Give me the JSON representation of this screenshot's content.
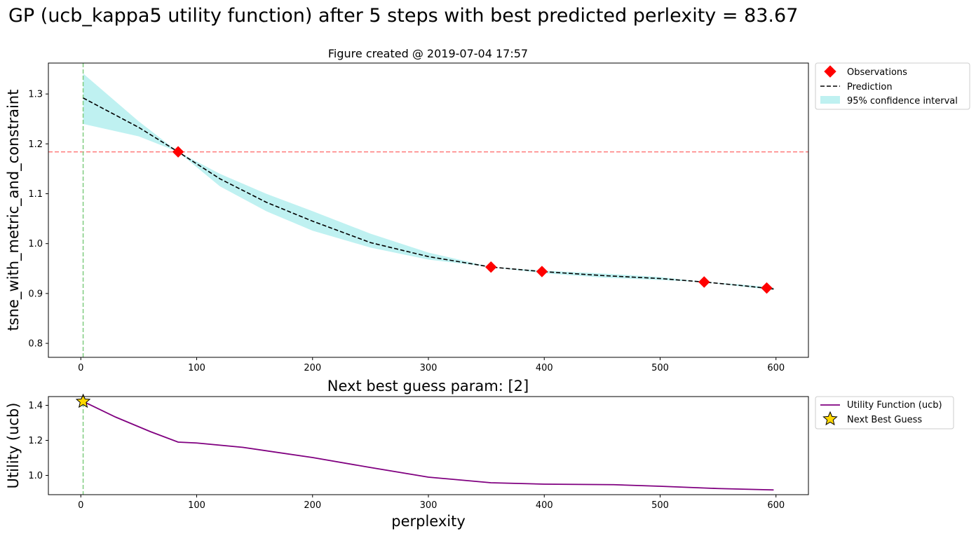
{
  "figure": {
    "suptitle": "GP (ucb_kappa5 utility function) after 5 steps with best predicted perlexity = 83.67"
  },
  "chart_data": [
    {
      "type": "line",
      "title": "Figure created @ 2019-07-04 17:57",
      "xlabel": "",
      "ylabel": "tsne_with_metric_and_constraint",
      "xlim": [
        -28,
        628
      ],
      "ylim": [
        0.772,
        1.362
      ],
      "xticks": [
        0,
        100,
        200,
        300,
        400,
        500,
        600
      ],
      "xtick_labels": [
        "0",
        "100",
        "200",
        "300",
        "400",
        "500",
        "600"
      ],
      "yticks": [
        0.8,
        0.9,
        1.0,
        1.1,
        1.2,
        1.3
      ],
      "ytick_labels": [
        "0.8",
        "0.9",
        "1.0",
        "1.1",
        "1.2",
        "1.3"
      ],
      "grid": false,
      "legend": {
        "placement": "outside-upper-right",
        "entries": [
          "Observations",
          "Prediction",
          "95% confidence interval"
        ]
      },
      "colors": {
        "observations": "#ff0000",
        "prediction": "#000000",
        "confidence": "#afeeee",
        "hline": "#ff7f7f",
        "vline": "#7fcc7f"
      },
      "observations": {
        "name": "Observations",
        "x": [
          84,
          354,
          398,
          538,
          592
        ],
        "y": [
          1.184,
          0.953,
          0.944,
          0.923,
          0.911
        ]
      },
      "prediction": {
        "name": "Prediction",
        "x": [
          2,
          50,
          84,
          120,
          160,
          200,
          250,
          300,
          354,
          398,
          450,
          500,
          538,
          570,
          598
        ],
        "y": [
          1.292,
          1.233,
          1.184,
          1.13,
          1.083,
          1.045,
          1.002,
          0.974,
          0.953,
          0.944,
          0.936,
          0.93,
          0.923,
          0.916,
          0.909
        ]
      },
      "confidence_interval": {
        "name": "95% confidence interval",
        "x": [
          2,
          50,
          84,
          120,
          160,
          200,
          250,
          300,
          354,
          398,
          450,
          500,
          538,
          570,
          598
        ],
        "upper": [
          1.341,
          1.245,
          1.184,
          1.14,
          1.1,
          1.065,
          1.02,
          0.982,
          0.953,
          0.946,
          0.94,
          0.933,
          0.923,
          0.918,
          0.912
        ],
        "lower": [
          1.24,
          1.215,
          1.184,
          1.115,
          1.065,
          1.026,
          0.992,
          0.968,
          0.953,
          0.941,
          0.932,
          0.927,
          0.923,
          0.914,
          0.907
        ]
      },
      "hline_y": 1.184,
      "vline_x": 2
    },
    {
      "type": "line",
      "title": "Next best guess param: [2]",
      "xlabel": "perplexity",
      "ylabel": "Utility (ucb)",
      "xlim": [
        -28,
        628
      ],
      "ylim": [
        0.89,
        1.45
      ],
      "xticks": [
        0,
        100,
        200,
        300,
        400,
        500,
        600
      ],
      "xtick_labels": [
        "0",
        "100",
        "200",
        "300",
        "400",
        "500",
        "600"
      ],
      "yticks": [
        1.0,
        1.2,
        1.4
      ],
      "ytick_labels": [
        "1.0",
        "1.2",
        "1.4"
      ],
      "grid": false,
      "legend": {
        "placement": "outside-upper-right",
        "entries": [
          "Utility Function (ucb)",
          "Next Best Guess"
        ]
      },
      "colors": {
        "utility": "#800080",
        "star_fill": "#ffd700",
        "vline": "#7fcc7f"
      },
      "utility": {
        "name": "Utility Function (ucb)",
        "x": [
          2,
          30,
          60,
          84,
          100,
          140,
          200,
          250,
          300,
          354,
          400,
          460,
          500,
          550,
          598
        ],
        "y": [
          1.422,
          1.333,
          1.25,
          1.19,
          1.185,
          1.16,
          1.102,
          1.045,
          0.99,
          0.958,
          0.95,
          0.947,
          0.938,
          0.925,
          0.917
        ]
      },
      "next_best_guess": {
        "name": "Next Best Guess",
        "x": 2,
        "y": 1.422
      },
      "vline_x": 2
    }
  ]
}
